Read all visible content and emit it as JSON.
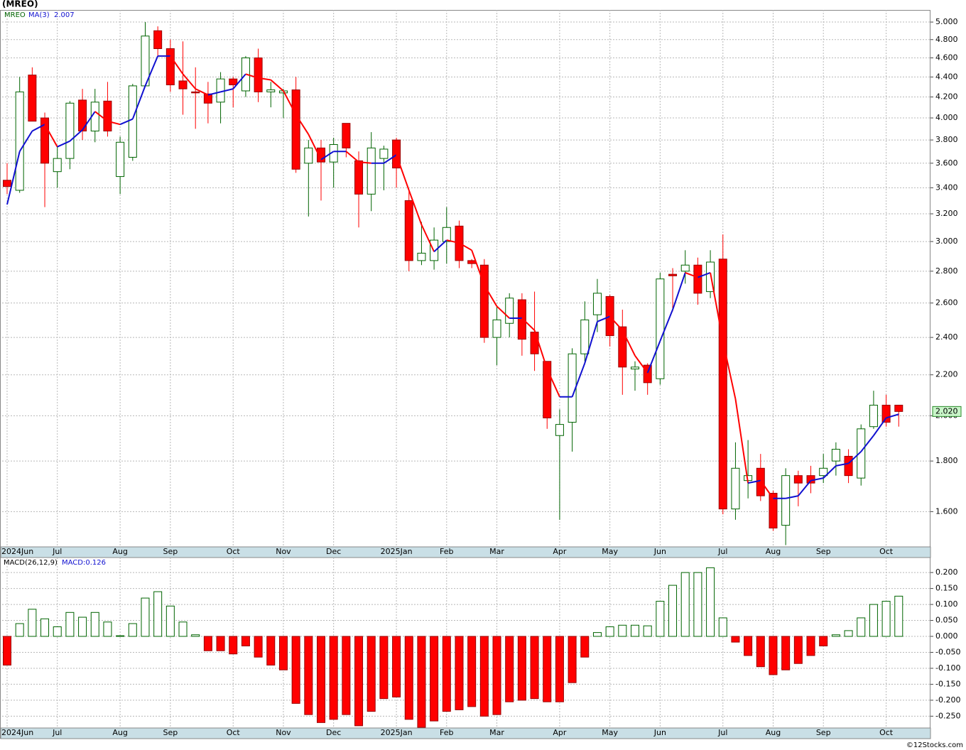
{
  "title": "(MREO)",
  "footer": "©12Stocks.com",
  "chart_data": [
    {
      "type": "candlestick",
      "symbol": "MREO",
      "log": true,
      "grid": true,
      "up_color": "#006400",
      "down_color": "#ff0000",
      "categories": [
        "2024Jun",
        null,
        null,
        null,
        "Jul",
        null,
        null,
        null,
        null,
        "Aug",
        null,
        null,
        null,
        "Sep",
        null,
        null,
        null,
        null,
        "Oct",
        null,
        null,
        null,
        "Nov",
        null,
        null,
        null,
        "Dec",
        null,
        null,
        null,
        null,
        "2025Jan",
        null,
        null,
        null,
        "Feb",
        null,
        null,
        null,
        "Mar",
        null,
        null,
        null,
        null,
        "Apr",
        null,
        null,
        null,
        "May",
        null,
        null,
        null,
        "Jun",
        null,
        null,
        null,
        null,
        "Jul",
        null,
        null,
        null,
        "Aug",
        null,
        null,
        null,
        "Sep",
        null,
        null,
        null,
        null,
        "Oct",
        null
      ],
      "open": [
        3.46,
        3.38,
        4.42,
        4.0,
        3.53,
        3.64,
        4.17,
        3.88,
        4.16,
        3.49,
        3.65,
        4.31,
        4.9,
        4.7,
        4.36,
        4.25,
        4.23,
        4.15,
        4.38,
        4.26,
        4.6,
        4.25,
        4.24,
        4.27,
        3.6,
        3.73,
        3.61,
        3.95,
        3.62,
        3.35,
        3.64,
        3.8,
        3.3,
        2.87,
        2.87,
        3.0,
        3.11,
        2.87,
        2.84,
        2.4,
        2.48,
        2.62,
        2.43,
        2.27,
        1.91,
        1.97,
        2.31,
        2.53,
        2.64,
        2.46,
        2.23,
        2.25,
        2.18,
        2.78,
        2.8,
        2.84,
        2.67,
        2.88,
        1.61,
        1.72,
        1.77,
        1.67,
        1.55,
        1.74,
        1.74,
        1.74,
        1.8,
        1.82,
        1.73,
        1.95,
        2.05,
        2.05
      ],
      "high": [
        3.6,
        4.4,
        4.5,
        4.05,
        3.75,
        4.16,
        4.28,
        4.28,
        4.35,
        3.83,
        4.33,
        5.0,
        4.95,
        4.8,
        4.78,
        4.5,
        4.35,
        4.45,
        4.4,
        4.62,
        4.7,
        4.35,
        4.28,
        4.4,
        3.8,
        3.8,
        3.82,
        3.95,
        3.7,
        3.87,
        3.75,
        3.82,
        3.38,
        3.14,
        3.1,
        3.25,
        3.15,
        2.88,
        2.88,
        2.58,
        2.66,
        2.66,
        2.67,
        2.27,
        2.03,
        2.34,
        2.61,
        2.75,
        2.65,
        2.56,
        2.27,
        2.26,
        2.79,
        2.82,
        2.94,
        2.89,
        2.94,
        3.05,
        1.88,
        1.89,
        1.83,
        1.68,
        1.77,
        1.76,
        1.78,
        1.83,
        1.88,
        1.85,
        1.96,
        2.12,
        2.1,
        2.05
      ],
      "low": [
        3.35,
        3.36,
        3.97,
        3.25,
        3.4,
        3.55,
        3.8,
        3.78,
        3.83,
        3.35,
        3.62,
        4.31,
        4.62,
        4.25,
        4.03,
        3.9,
        3.95,
        3.95,
        4.1,
        4.2,
        4.15,
        4.1,
        4.0,
        3.52,
        3.18,
        3.3,
        3.4,
        3.65,
        3.1,
        3.22,
        3.38,
        3.4,
        2.8,
        2.84,
        2.81,
        2.85,
        2.82,
        2.82,
        2.37,
        2.25,
        2.4,
        2.3,
        2.22,
        1.94,
        1.57,
        1.84,
        2.27,
        2.43,
        2.35,
        2.1,
        2.12,
        2.1,
        2.15,
        2.55,
        2.72,
        2.59,
        2.63,
        1.59,
        1.57,
        1.65,
        1.64,
        1.53,
        1.48,
        1.62,
        1.67,
        1.71,
        1.74,
        1.71,
        1.7,
        1.94,
        1.95,
        1.95
      ],
      "close": [
        3.41,
        4.25,
        3.97,
        3.6,
        3.64,
        4.14,
        3.88,
        4.15,
        3.88,
        3.78,
        4.31,
        4.84,
        4.7,
        4.32,
        4.28,
        4.24,
        4.14,
        4.38,
        4.32,
        4.6,
        4.25,
        4.27,
        4.26,
        3.55,
        3.73,
        3.61,
        3.76,
        3.73,
        3.35,
        3.73,
        3.72,
        3.56,
        2.87,
        2.92,
        3.01,
        3.1,
        2.87,
        2.85,
        2.4,
        2.5,
        2.63,
        2.39,
        2.31,
        1.99,
        1.96,
        2.31,
        2.5,
        2.66,
        2.41,
        2.24,
        2.24,
        2.16,
        2.75,
        2.77,
        2.84,
        2.66,
        2.86,
        1.61,
        1.77,
        1.74,
        1.66,
        1.54,
        1.74,
        1.71,
        1.71,
        1.77,
        1.85,
        1.74,
        1.94,
        2.05,
        1.97,
        2.02
      ],
      "last_label": "2.020",
      "ma": {
        "name": "MA(3)",
        "up_color": "#1010d0",
        "down_color": "#ff0000",
        "values": [
          3.27,
          3.7,
          3.88,
          3.94,
          3.74,
          3.79,
          3.89,
          4.06,
          3.97,
          3.94,
          3.99,
          4.31,
          4.62,
          4.62,
          4.43,
          4.28,
          4.22,
          4.25,
          4.28,
          4.43,
          4.39,
          4.37,
          4.26,
          4.03,
          3.85,
          3.63,
          3.7,
          3.7,
          3.61,
          3.6,
          3.6,
          3.67,
          3.38,
          3.12,
          2.93,
          3.01,
          2.99,
          2.94,
          2.71,
          2.58,
          2.51,
          2.51,
          2.44,
          2.23,
          2.09,
          2.09,
          2.26,
          2.49,
          2.52,
          2.44,
          2.3,
          2.21,
          2.38,
          2.56,
          2.79,
          2.76,
          2.79,
          2.38,
          2.08,
          1.71,
          1.72,
          1.65,
          1.65,
          1.66,
          1.72,
          1.73,
          1.78,
          1.79,
          1.84,
          1.91,
          1.99,
          2.007
        ]
      },
      "ylim": [
        1.474,
        5.143
      ],
      "yticks": [
        {
          "value": 1.6,
          "label": "1.600"
        },
        {
          "value": 1.8,
          "label": "1.800"
        },
        {
          "value": 2.0,
          "label": "2.000"
        },
        {
          "value": 2.2,
          "label": "2.200"
        },
        {
          "value": 2.4,
          "label": "2.400"
        },
        {
          "value": 2.6,
          "label": "2.600"
        },
        {
          "value": 2.8,
          "label": "2.800"
        },
        {
          "value": 3.0,
          "label": "3.000"
        },
        {
          "value": 3.2,
          "label": "3.200"
        },
        {
          "value": 3.4,
          "label": "3.400"
        },
        {
          "value": 3.6,
          "label": "3.600"
        },
        {
          "value": 3.8,
          "label": "3.800"
        },
        {
          "value": 4.0,
          "label": "4.000"
        },
        {
          "value": 4.2,
          "label": "4.200"
        },
        {
          "value": 4.4,
          "label": "4.400"
        },
        {
          "value": 4.6,
          "label": "4.600"
        },
        {
          "value": 4.8,
          "label": "4.800"
        },
        {
          "value": 5.0,
          "label": "5.000"
        }
      ]
    },
    {
      "type": "bar",
      "title": "MACD(26,12,9)",
      "current_label": "MACD:0.126",
      "grid": true,
      "up_color": "#006400",
      "down_color": "#ff0000",
      "categories": [
        "2024Jun",
        null,
        null,
        null,
        "Jul",
        null,
        null,
        null,
        null,
        "Aug",
        null,
        null,
        null,
        "Sep",
        null,
        null,
        null,
        null,
        "Oct",
        null,
        null,
        null,
        "Nov",
        null,
        null,
        null,
        "Dec",
        null,
        null,
        null,
        null,
        "2025Jan",
        null,
        null,
        null,
        "Feb",
        null,
        null,
        null,
        "Mar",
        null,
        null,
        null,
        null,
        "Apr",
        null,
        null,
        null,
        "May",
        null,
        null,
        null,
        "Jun",
        null,
        null,
        null,
        null,
        "Jul",
        null,
        null,
        null,
        "Aug",
        null,
        null,
        null,
        "Sep",
        null,
        null,
        null,
        null,
        "Oct",
        null
      ],
      "values": [
        -0.09,
        0.04,
        0.085,
        0.055,
        0.03,
        0.075,
        0.06,
        0.075,
        0.045,
        0.002,
        0.04,
        0.12,
        0.14,
        0.095,
        0.045,
        0.005,
        -0.045,
        -0.045,
        -0.055,
        -0.03,
        -0.065,
        -0.09,
        -0.105,
        -0.21,
        -0.245,
        -0.27,
        -0.26,
        -0.245,
        -0.28,
        -0.235,
        -0.195,
        -0.19,
        -0.26,
        -0.285,
        -0.265,
        -0.235,
        -0.23,
        -0.22,
        -0.25,
        -0.245,
        -0.205,
        -0.2,
        -0.195,
        -0.205,
        -0.205,
        -0.145,
        -0.065,
        0.012,
        0.03,
        0.035,
        0.035,
        0.033,
        0.11,
        0.16,
        0.2,
        0.2,
        0.215,
        0.058,
        -0.018,
        -0.06,
        -0.095,
        -0.12,
        -0.105,
        -0.085,
        -0.06,
        -0.03,
        0.005,
        0.018,
        0.058,
        0.1,
        0.11,
        0.126
      ],
      "ylim": [
        -0.287,
        0.247
      ],
      "yticks": [
        {
          "value": -0.25,
          "label": "-0.250"
        },
        {
          "value": -0.2,
          "label": "-0.200"
        },
        {
          "value": -0.15,
          "label": "-0.150"
        },
        {
          "value": -0.1,
          "label": "-0.100"
        },
        {
          "value": -0.05,
          "label": "-0.050"
        },
        {
          "value": 0,
          "label": "0.000"
        },
        {
          "value": 0.05,
          "label": "0.050"
        },
        {
          "value": 0.1,
          "label": "0.100"
        },
        {
          "value": 0.15,
          "label": "0.150"
        },
        {
          "value": 0.2,
          "label": "0.200"
        }
      ]
    }
  ]
}
